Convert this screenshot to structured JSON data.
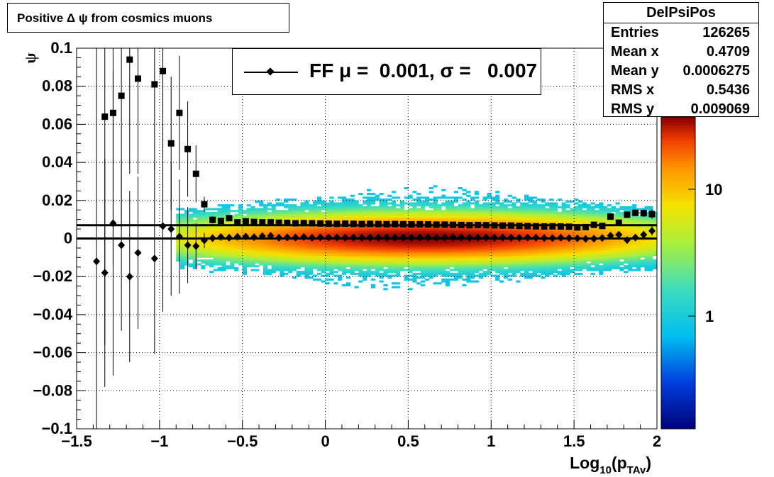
{
  "title": "Positive Δ ψ from cosmics muons",
  "stats": {
    "name": "DelPsiPos",
    "rows": [
      {
        "label": "Entries",
        "value": "126265"
      },
      {
        "label": "Mean x",
        "value": "0.4709"
      },
      {
        "label": "Mean y",
        "value": "0.0006275"
      },
      {
        "label": "RMS x",
        "value": "0.5436"
      },
      {
        "label": "RMS y",
        "value": "0.009069"
      }
    ]
  },
  "legend": {
    "text": "FF μ =  0.001, σ =   0.007"
  },
  "chart_data": {
    "type": "heatmap",
    "title": "Positive Δ ψ from cosmics muons",
    "xlabel": "Log10(pTAv)",
    "ylabel": "ψ",
    "xlim": [
      -1.5,
      2
    ],
    "ylim": [
      -0.1,
      0.1
    ],
    "x_ticks": [
      "−1.5",
      "−1",
      "−0.5",
      "0",
      "0.5",
      "1",
      "1.5",
      "2"
    ],
    "y_ticks": [
      "−0.1",
      "−0.08",
      "−0.06",
      "−0.04",
      "−0.02",
      "0",
      "0.02",
      "0.04",
      "0.06",
      "0.08",
      "0.1"
    ],
    "colorbar_ticks": [
      "1",
      "10"
    ],
    "colorbar_scale": "log",
    "grid": true,
    "horizontal_lines": [
      0.0,
      0.007
    ],
    "series": [
      {
        "name": "FF",
        "marker": "diamond",
        "x": [
          -1.38,
          -1.33,
          -1.28,
          -1.23,
          -1.18,
          -1.13,
          -1.03,
          -0.98,
          -0.93,
          -0.88,
          -0.83,
          -0.78,
          -0.73,
          -0.68,
          -0.63,
          -0.58,
          -0.53,
          -0.48,
          -0.43,
          -0.38,
          -0.33,
          -0.28,
          -0.23,
          -0.18,
          -0.13,
          -0.08,
          -0.03,
          0.02,
          0.07,
          0.12,
          0.17,
          0.22,
          0.27,
          0.32,
          0.37,
          0.42,
          0.47,
          0.52,
          0.57,
          0.62,
          0.67,
          0.72,
          0.77,
          0.82,
          0.87,
          0.92,
          0.97,
          1.02,
          1.07,
          1.12,
          1.17,
          1.22,
          1.27,
          1.32,
          1.37,
          1.42,
          1.47,
          1.52,
          1.57,
          1.62,
          1.67,
          1.72,
          1.77,
          1.82,
          1.87,
          1.92,
          1.97
        ],
        "y": [
          -0.012,
          -0.018,
          0.008,
          -0.0035,
          -0.02,
          -0.0075,
          -0.0105,
          0.0065,
          0.005,
          0.001,
          -0.0035,
          -0.004,
          -0.001,
          0.0002,
          0.0008,
          0.0004,
          0.0009,
          0.001,
          0.0007,
          0.0012,
          0.0014,
          0.0004,
          0.0006,
          0.0005,
          0.0008,
          0.0004,
          0.0006,
          0.0005,
          0.0005,
          0.0004,
          0.0005,
          0.0004,
          0.0005,
          0.0004,
          0.0005,
          0.0004,
          0.0005,
          0.0004,
          0.0005,
          0.0006,
          0.0004,
          0.0005,
          0.0006,
          0.0005,
          0.0004,
          0.0005,
          0.0005,
          0.0004,
          0.0005,
          0.0004,
          0.0003,
          0.0005,
          0.0004,
          0.0003,
          0.0002,
          0.0004,
          0.0002,
          0.0001,
          -0.0002,
          -0.0001,
          0.0003,
          0.0015,
          0.002,
          -0.0008,
          0.0005,
          0.002,
          0.004
        ],
        "yerr": [
          0.15,
          0.06,
          0.08,
          0.045,
          0.045,
          0.04,
          0.05,
          0.045,
          0.035,
          0.03,
          0.02,
          0.012,
          0.004,
          0.002,
          0.0015,
          0.0012,
          0.001,
          0.0008,
          0.0007,
          0.0006,
          0.0006,
          0.0005,
          0.0005,
          0.0005,
          0.0005,
          0.0005,
          0.0005,
          0.0005,
          0.0005,
          0.0005,
          0.0005,
          0.0005,
          0.0005,
          0.0005,
          0.0005,
          0.0005,
          0.0005,
          0.0005,
          0.0005,
          0.0005,
          0.0005,
          0.0005,
          0.0005,
          0.0005,
          0.0005,
          0.0005,
          0.0005,
          0.0005,
          0.0005,
          0.0005,
          0.0005,
          0.0005,
          0.0005,
          0.0005,
          0.0005,
          0.0006,
          0.0006,
          0.0007,
          0.0008,
          0.0009,
          0.001,
          0.0012,
          0.0014,
          0.0016,
          0.0018,
          0.002,
          0.0025
        ]
      },
      {
        "name": "",
        "marker": "square",
        "x": [
          -1.33,
          -1.28,
          -1.23,
          -1.18,
          -1.13,
          -1.03,
          -0.98,
          -0.93,
          -0.88,
          -0.83,
          -0.78,
          -0.73,
          -0.68,
          -0.63,
          -0.58,
          -0.53,
          -0.48,
          -0.43,
          -0.38,
          -0.33,
          -0.28,
          -0.23,
          -0.18,
          -0.13,
          -0.08,
          -0.03,
          0.02,
          0.07,
          0.12,
          0.17,
          0.22,
          0.27,
          0.32,
          0.37,
          0.42,
          0.47,
          0.52,
          0.57,
          0.62,
          0.67,
          0.72,
          0.77,
          0.82,
          0.87,
          0.92,
          0.97,
          1.02,
          1.07,
          1.12,
          1.17,
          1.22,
          1.27,
          1.32,
          1.37,
          1.42,
          1.47,
          1.52,
          1.57,
          1.62,
          1.67,
          1.72,
          1.77,
          1.82,
          1.87,
          1.92,
          1.97
        ],
        "y": [
          0.064,
          0.066,
          0.075,
          0.094,
          0.084,
          0.081,
          0.088,
          0.05,
          0.066,
          0.047,
          0.034,
          0.018,
          0.0098,
          0.0092,
          0.0107,
          0.0085,
          0.009,
          0.0087,
          0.0085,
          0.0085,
          0.0083,
          0.0082,
          0.008,
          0.0081,
          0.008,
          0.0079,
          0.0078,
          0.0077,
          0.0078,
          0.0077,
          0.0076,
          0.0077,
          0.0076,
          0.0075,
          0.0076,
          0.0075,
          0.0074,
          0.0075,
          0.0074,
          0.0073,
          0.0073,
          0.0072,
          0.0071,
          0.007,
          0.0071,
          0.007,
          0.0069,
          0.0068,
          0.0068,
          0.0066,
          0.0065,
          0.0064,
          0.0063,
          0.0064,
          0.0063,
          0.0062,
          0.0058,
          0.006,
          0.0072,
          0.0066,
          0.0115,
          0.0083,
          0.0125,
          0.0135,
          0.0133,
          0.0128
        ],
        "yerr": [
          0.12,
          0.08,
          0.07,
          0.06,
          0.05,
          0.045,
          0.04,
          0.035,
          0.03,
          0.025,
          0.015,
          0.004,
          0.002,
          0.0015,
          0.0012,
          0.001,
          0.0008,
          0.0007,
          0.0006,
          0.0006,
          0.0005,
          0.0005,
          0.0005,
          0.0005,
          0.0005,
          0.0005,
          0.0005,
          0.0005,
          0.0005,
          0.0005,
          0.0005,
          0.0005,
          0.0005,
          0.0005,
          0.0005,
          0.0005,
          0.0005,
          0.0005,
          0.0005,
          0.0005,
          0.0005,
          0.0005,
          0.0005,
          0.0005,
          0.0005,
          0.0005,
          0.0005,
          0.0005,
          0.0005,
          0.0005,
          0.0005,
          0.0005,
          0.0005,
          0.0005,
          0.0006,
          0.0006,
          0.0007,
          0.0008,
          0.0009,
          0.001,
          0.0012,
          0.0014,
          0.0016,
          0.0018,
          0.002,
          0.0025
        ]
      }
    ],
    "density_model": {
      "x_range": [
        -0.9,
        2.0
      ],
      "core_center_x": 0.6,
      "core_width_x": 0.75,
      "core_center_y": 0.0003,
      "core_sigma_y": 0.006,
      "peak_count": 60
    }
  }
}
